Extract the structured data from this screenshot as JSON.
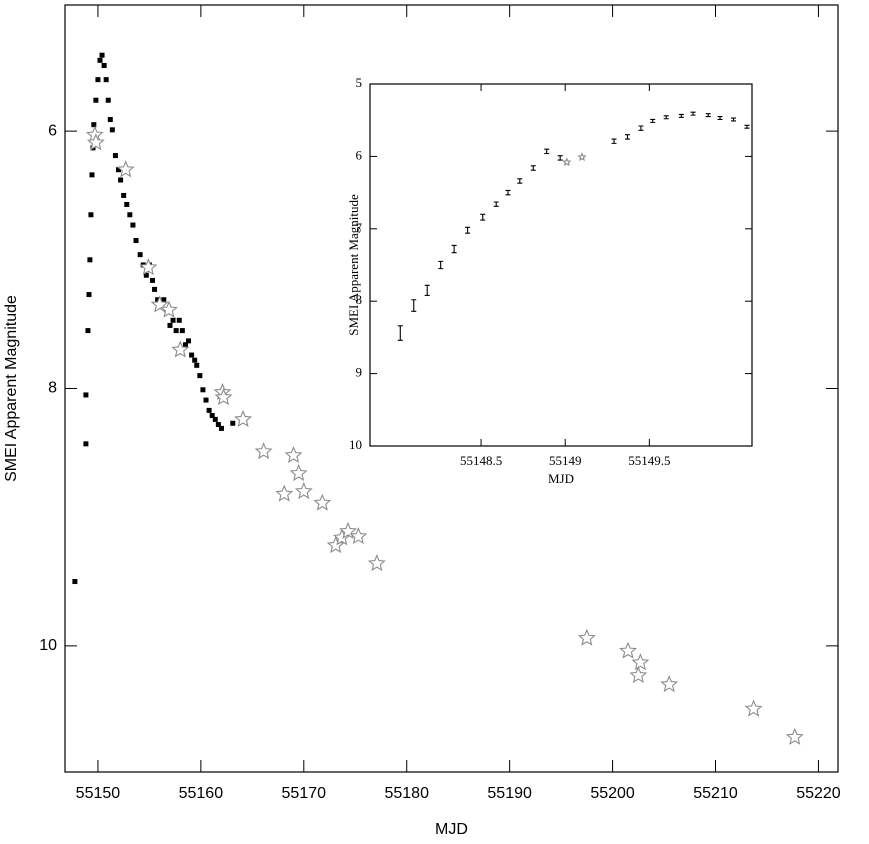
{
  "chart_data": [
    {
      "type": "scatter",
      "x_label": "MJD",
      "y_label": "SMEI Apparent Magnitude",
      "xlim": [
        55146.8,
        55221.9
      ],
      "ylim": [
        5.02,
        10.98
      ],
      "y_inverted": true,
      "xticks": [
        55150,
        55160,
        55170,
        55180,
        55190,
        55200,
        55210,
        55220
      ],
      "yticks": [
        6,
        8,
        10
      ],
      "series": [
        {
          "color": "#000000",
          "marker": "square",
          "x": [
            55147.76,
            55148.83,
            55148.83,
            55149.03,
            55149.13,
            55149.22,
            55149.32,
            55149.42,
            55149.52,
            55149.6,
            55149.8,
            55150.0,
            55150.2,
            55150.4,
            55150.6,
            55150.8,
            55151.0,
            55151.2,
            55151.4,
            55151.7,
            55152.0,
            55152.2,
            55152.5,
            55152.8,
            55153.1,
            55153.4,
            55153.7,
            55154.1,
            55154.4,
            55154.7,
            55155.0,
            55155.3,
            55155.5,
            55155.8,
            55156.1,
            55156.4,
            55156.7,
            55157.0,
            55157.3,
            55157.6,
            55157.9,
            55158.2,
            55158.5,
            55158.8,
            55159.1,
            55159.4,
            55159.6,
            55159.9,
            55160.2,
            55160.5,
            55160.8,
            55161.1,
            55161.4,
            55161.7,
            55162.0,
            55163.1
          ],
          "values": [
            9.5,
            8.43,
            8.05,
            7.55,
            7.27,
            7.0,
            6.65,
            6.34,
            6.13,
            5.95,
            5.76,
            5.6,
            5.45,
            5.41,
            5.49,
            5.6,
            5.76,
            5.91,
            5.99,
            6.19,
            6.3,
            6.38,
            6.5,
            6.57,
            6.65,
            6.73,
            6.85,
            6.96,
            7.04,
            7.12,
            7.04,
            7.16,
            7.23,
            7.31,
            7.35,
            7.31,
            7.39,
            7.51,
            7.47,
            7.55,
            7.47,
            7.55,
            7.66,
            7.63,
            7.74,
            7.78,
            7.82,
            7.9,
            8.01,
            8.09,
            8.17,
            8.21,
            8.24,
            8.28,
            8.31,
            8.27
          ]
        },
        {
          "color": "#8c8c8c",
          "marker": "star",
          "x": [
            55149.7,
            55149.8,
            55152.7,
            55154.9,
            55156.0,
            55156.9,
            55158.0,
            55162.1,
            55162.2,
            55164.1,
            55166.1,
            55168.1,
            55169.0,
            55169.5,
            55170.0,
            55171.8,
            55173.1,
            55173.7,
            55174.3,
            55175.3,
            55177.1,
            55197.5,
            55201.5,
            55202.7,
            55202.5,
            55205.5,
            55213.7,
            55217.7
          ],
          "values": [
            6.03,
            6.09,
            6.3,
            7.06,
            7.35,
            7.39,
            7.7,
            8.03,
            8.07,
            8.24,
            8.49,
            8.82,
            8.52,
            8.66,
            8.8,
            8.89,
            9.22,
            9.16,
            9.11,
            9.15,
            9.36,
            9.94,
            10.04,
            10.13,
            10.23,
            10.3,
            10.49,
            10.71
          ]
        }
      ]
    },
    {
      "type": "scatter",
      "x_label": "MJD",
      "y_label": "SMEI Apparent Magnitude",
      "xlim": [
        55147.84,
        55150.11
      ],
      "ylim": [
        5,
        10
      ],
      "y_inverted": true,
      "xticks": [
        55148.5,
        55149,
        55149.5
      ],
      "yticks": [
        5,
        6,
        7,
        8,
        9,
        10
      ],
      "series": [
        {
          "color": "#000000",
          "marker": "errorbar",
          "x": [
            55148.02,
            55148.1,
            55148.18,
            55148.26,
            55148.34,
            55148.42,
            55148.51,
            55148.59,
            55148.66,
            55148.73,
            55148.81,
            55148.89,
            55148.97,
            55149.29,
            55149.37,
            55149.45,
            55149.52,
            55149.6,
            55149.69,
            55149.76,
            55149.85,
            55149.92,
            55150.0,
            55150.08
          ],
          "values": [
            8.44,
            8.06,
            7.85,
            7.5,
            7.28,
            7.02,
            6.84,
            6.66,
            6.5,
            6.34,
            6.16,
            5.93,
            6.02,
            5.79,
            5.73,
            5.61,
            5.51,
            5.46,
            5.44,
            5.41,
            5.43,
            5.47,
            5.49,
            5.59
          ],
          "errors": [
            0.1,
            0.08,
            0.07,
            0.05,
            0.05,
            0.04,
            0.04,
            0.03,
            0.03,
            0.03,
            0.03,
            0.03,
            0.03,
            0.03,
            0.03,
            0.03,
            0.02,
            0.02,
            0.02,
            0.02,
            0.02,
            0.02,
            0.02,
            0.02
          ]
        },
        {
          "color": "#8c8c8c",
          "marker": "star",
          "x": [
            55149.01,
            55149.1
          ],
          "values": [
            6.08,
            6.01
          ]
        }
      ]
    }
  ]
}
